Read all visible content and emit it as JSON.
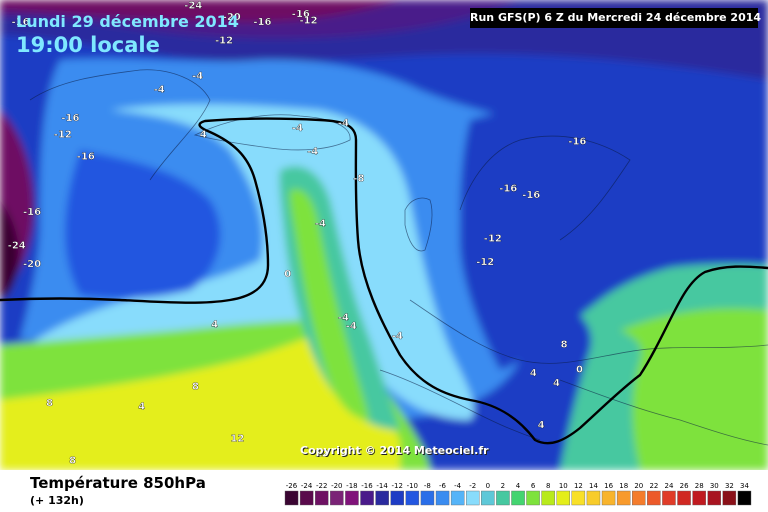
{
  "header": {
    "date": "Lundi 29 décembre 2014",
    "time": "19:00 locale",
    "run": "Run GFS(P) 6 Z du Mercredi 24 décembre 2014"
  },
  "footer": {
    "title": "Température 850hPa",
    "lead": "(+ 132h)",
    "copyright": "Copyright © 2014 Meteociel.fr"
  },
  "legend": {
    "values": [
      "-26",
      "-24",
      "-22",
      "-20",
      "-18",
      "-16",
      "-14",
      "-12",
      "-10",
      "-8",
      "-6",
      "-4",
      "-2",
      "0",
      "2",
      "4",
      "6",
      "8",
      "10",
      "12",
      "14",
      "16",
      "18",
      "20",
      "22",
      "24",
      "26",
      "28",
      "30",
      "32",
      "34"
    ],
    "colors": [
      "#3a0532",
      "#5a0a4c",
      "#6e1163",
      "#7a2376",
      "#80127a",
      "#4a1a8a",
      "#2a2a9e",
      "#1e3cc4",
      "#2356e0",
      "#2a6ee8",
      "#3a8cf0",
      "#55b4f8",
      "#88dcfc",
      "#5ec8d8",
      "#46c8a0",
      "#44d470",
      "#7ee23c",
      "#b8ea1c",
      "#e4ee1a",
      "#f8e028",
      "#f8cc2a",
      "#f8b42c",
      "#f89a2c",
      "#f47c2c",
      "#ec5a2a",
      "#e03c28",
      "#d02822",
      "#c01a20",
      "#a81420",
      "#8a1018",
      "#000000"
    ]
  },
  "map": {
    "colors": {
      "sea_cold": "#2a4db8",
      "ice_blue": "#2356e0",
      "mid_blue": "#3a8cf0",
      "light_blue": "#55b4f8",
      "cyan": "#88dcfc",
      "green": "#46c8a0",
      "lime": "#7ee23c",
      "yellow": "#e4ee1a",
      "purple": "#5a1a78",
      "deep_purple": "#3a0532"
    },
    "contour_labels": [
      {
        "text": "-16",
        "x": 1.5,
        "y": 15
      },
      {
        "text": "-24",
        "x": 24,
        "y": 5
      },
      {
        "text": "-20",
        "x": 29,
        "y": 12
      },
      {
        "text": "-16",
        "x": 38,
        "y": 10
      },
      {
        "text": "-12",
        "x": 39,
        "y": 14
      },
      {
        "text": "-16",
        "x": 33,
        "y": 15
      },
      {
        "text": "-12",
        "x": 28,
        "y": 26
      },
      {
        "text": "-4",
        "x": 25,
        "y": 47
      },
      {
        "text": "-4",
        "x": 20,
        "y": 55
      },
      {
        "text": "-16",
        "x": 8,
        "y": 72
      },
      {
        "text": "-12",
        "x": 7,
        "y": 82
      },
      {
        "text": "-16",
        "x": 10,
        "y": 95
      },
      {
        "text": "4",
        "x": 26,
        "y": 82
      },
      {
        "text": "-4",
        "x": 38,
        "y": 78
      },
      {
        "text": "-4",
        "x": 44,
        "y": 75
      },
      {
        "text": "-4",
        "x": 40,
        "y": 92
      },
      {
        "text": "-8",
        "x": 46,
        "y": 108
      },
      {
        "text": "-16",
        "x": 74,
        "y": 86
      },
      {
        "text": "-16",
        "x": 65,
        "y": 114
      },
      {
        "text": "-16",
        "x": 68,
        "y": 118
      },
      {
        "text": "-16",
        "x": 3,
        "y": 128
      },
      {
        "text": "-24",
        "x": 1,
        "y": 148
      },
      {
        "text": "-20",
        "x": 3,
        "y": 159
      },
      {
        "text": "-4",
        "x": 41,
        "y": 135
      },
      {
        "text": "-12",
        "x": 63,
        "y": 144
      },
      {
        "text": "-12",
        "x": 62,
        "y": 158
      },
      {
        "text": "0",
        "x": 37,
        "y": 165
      },
      {
        "text": "4",
        "x": 27.5,
        "y": 195
      },
      {
        "text": "-4",
        "x": 44,
        "y": 191
      },
      {
        "text": "-4",
        "x": 45,
        "y": 196
      },
      {
        "text": "-4",
        "x": 51,
        "y": 202
      },
      {
        "text": "8",
        "x": 73,
        "y": 207
      },
      {
        "text": "4",
        "x": 69,
        "y": 224
      },
      {
        "text": "0",
        "x": 75,
        "y": 222
      },
      {
        "text": "4",
        "x": 72,
        "y": 230
      },
      {
        "text": "8",
        "x": 6,
        "y": 242
      },
      {
        "text": "4",
        "x": 18,
        "y": 244
      },
      {
        "text": "8",
        "x": 25,
        "y": 232
      },
      {
        "text": "4",
        "x": 70,
        "y": 255
      },
      {
        "text": "12",
        "x": 30,
        "y": 263
      },
      {
        "text": "12",
        "x": 41,
        "y": 272
      },
      {
        "text": "8",
        "x": 9,
        "y": 276
      }
    ]
  }
}
